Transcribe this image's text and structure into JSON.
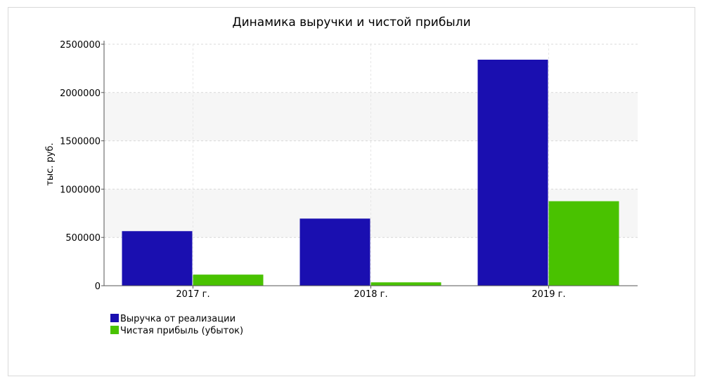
{
  "chart_data": {
    "type": "bar",
    "title": "Динамика выручки и чистой прибыли",
    "xlabel": "",
    "ylabel": "тыс. руб.",
    "categories": [
      "2017 г.",
      "2018 г.",
      "2019 г."
    ],
    "series": [
      {
        "name": "Выручка от реализации",
        "values": [
          565000,
          695000,
          2340000
        ],
        "color": "#1a0fb0"
      },
      {
        "name": "Чистая прибыль (убыток)",
        "values": [
          115000,
          35000,
          875000
        ],
        "color": "#49c200"
      }
    ],
    "ylim": [
      0,
      2500000
    ],
    "yticks": [
      0,
      500000,
      1000000,
      1500000,
      2000000,
      2500000
    ],
    "ytick_labels": [
      "0",
      "500000",
      "1000000",
      "1500000",
      "2000000",
      "2500000"
    ],
    "grid": true,
    "legend_position": "bottom-left"
  }
}
